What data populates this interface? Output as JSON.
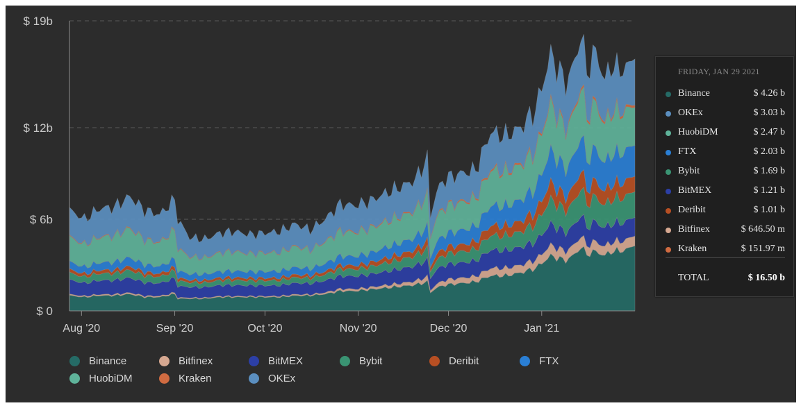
{
  "chart_data": {
    "type": "area",
    "stacked": true,
    "y_unit": "USD billions",
    "ylim": [
      0,
      19
    ],
    "y_ticks": [
      {
        "value": 0,
        "label": "$ 0"
      },
      {
        "value": 6,
        "label": "$ 6b"
      },
      {
        "value": 12,
        "label": "$ 12b"
      },
      {
        "value": 19,
        "label": "$ 19b"
      }
    ],
    "x_ticks": [
      {
        "day": 4,
        "label": "Aug '20"
      },
      {
        "day": 35,
        "label": "Sep '20"
      },
      {
        "day": 65,
        "label": "Oct '20"
      },
      {
        "day": 96,
        "label": "Nov '20"
      },
      {
        "day": 126,
        "label": "Dec '20"
      },
      {
        "day": 157,
        "label": "Jan '21"
      }
    ],
    "x_domain": [
      0,
      188
    ],
    "anchor_days": [
      0,
      5,
      10,
      15,
      20,
      25,
      30,
      35,
      36,
      40,
      45,
      50,
      55,
      60,
      65,
      70,
      75,
      80,
      85,
      90,
      95,
      100,
      105,
      110,
      115,
      119,
      120,
      122,
      125,
      130,
      135,
      140,
      145,
      150,
      155,
      160,
      165,
      168,
      170,
      172,
      175,
      178,
      180,
      182,
      185,
      188
    ],
    "anchor_totals": [
      6.6,
      6.0,
      6.7,
      6.8,
      7.5,
      6.6,
      6.3,
      7.3,
      6.0,
      4.8,
      4.7,
      5.1,
      5.2,
      5.0,
      5.1,
      5.2,
      5.7,
      5.3,
      6.0,
      7.0,
      6.9,
      7.2,
      7.7,
      8.1,
      8.6,
      10.0,
      6.2,
      7.8,
      8.7,
      9.0,
      9.2,
      11.7,
      11.5,
      12.0,
      13.2,
      16.8,
      14.9,
      16.3,
      18.2,
      15.7,
      17.1,
      15.0,
      16.2,
      15.8,
      15.9,
      16.5
    ],
    "series": [
      {
        "name": "Binance",
        "color": "#256b66",
        "anchor_values": [
          1.0,
          0.9,
          1.0,
          1.0,
          1.1,
          0.9,
          0.9,
          1.1,
          0.8,
          0.8,
          0.8,
          0.9,
          0.9,
          0.9,
          0.9,
          0.9,
          1.0,
          1.0,
          1.1,
          1.3,
          1.3,
          1.4,
          1.5,
          1.6,
          1.7,
          1.9,
          1.2,
          1.5,
          1.7,
          1.8,
          1.9,
          2.3,
          2.3,
          2.5,
          2.8,
          3.6,
          3.3,
          3.7,
          4.2,
          3.7,
          3.9,
          3.6,
          3.9,
          3.9,
          4.0,
          4.26
        ]
      },
      {
        "name": "Bitfinex",
        "color": "#d6a891",
        "anchor_values": [
          0.08,
          0.07,
          0.08,
          0.08,
          0.09,
          0.08,
          0.07,
          0.09,
          0.07,
          0.06,
          0.06,
          0.06,
          0.06,
          0.06,
          0.06,
          0.07,
          0.08,
          0.07,
          0.1,
          0.14,
          0.13,
          0.14,
          0.18,
          0.2,
          0.25,
          0.35,
          0.15,
          0.25,
          0.33,
          0.35,
          0.36,
          0.5,
          0.5,
          0.5,
          0.55,
          0.7,
          0.6,
          0.65,
          0.75,
          0.6,
          0.65,
          0.6,
          0.62,
          0.62,
          0.64,
          0.6465
        ]
      },
      {
        "name": "BitMEX",
        "color": "#2c3fa6",
        "anchor_values": [
          0.95,
          0.85,
          0.92,
          0.92,
          0.98,
          0.88,
          0.84,
          0.95,
          0.75,
          0.7,
          0.68,
          0.72,
          0.72,
          0.7,
          0.7,
          0.7,
          0.75,
          0.72,
          0.78,
          0.85,
          0.84,
          0.86,
          0.9,
          0.95,
          1.0,
          1.1,
          0.8,
          0.95,
          1.0,
          1.0,
          1.02,
          1.2,
          1.15,
          1.18,
          1.2,
          1.4,
          1.25,
          1.3,
          1.4,
          1.2,
          1.3,
          1.2,
          1.22,
          1.2,
          1.2,
          1.21
        ]
      },
      {
        "name": "Bybit",
        "color": "#3a9473",
        "anchor_values": [
          0.45,
          0.4,
          0.45,
          0.45,
          0.5,
          0.45,
          0.42,
          0.48,
          0.35,
          0.3,
          0.3,
          0.32,
          0.33,
          0.32,
          0.32,
          0.33,
          0.36,
          0.34,
          0.4,
          0.45,
          0.45,
          0.48,
          0.55,
          0.6,
          0.65,
          0.75,
          0.45,
          0.6,
          0.68,
          0.72,
          0.75,
          0.95,
          0.95,
          1.0,
          1.15,
          1.6,
          1.4,
          1.55,
          1.8,
          1.5,
          1.65,
          1.45,
          1.6,
          1.6,
          1.65,
          1.69
        ]
      },
      {
        "name": "Deribit",
        "color": "#b74f23",
        "anchor_values": [
          0.22,
          0.2,
          0.22,
          0.22,
          0.25,
          0.22,
          0.2,
          0.24,
          0.2,
          0.16,
          0.16,
          0.17,
          0.17,
          0.17,
          0.17,
          0.17,
          0.19,
          0.18,
          0.2,
          0.25,
          0.25,
          0.27,
          0.32,
          0.35,
          0.4,
          0.5,
          0.3,
          0.4,
          0.45,
          0.45,
          0.5,
          0.65,
          0.65,
          0.7,
          0.8,
          1.1,
          0.9,
          1.0,
          1.2,
          0.95,
          1.05,
          0.9,
          1.0,
          0.98,
          1.0,
          1.01
        ]
      },
      {
        "name": "FTX",
        "color": "#2a7fd5",
        "anchor_values": [
          0.5,
          0.45,
          0.5,
          0.52,
          0.58,
          0.5,
          0.48,
          0.55,
          0.45,
          0.4,
          0.4,
          0.42,
          0.43,
          0.42,
          0.43,
          0.44,
          0.48,
          0.45,
          0.52,
          0.6,
          0.6,
          0.63,
          0.7,
          0.75,
          0.8,
          0.95,
          0.6,
          0.8,
          0.9,
          0.95,
          1.0,
          1.3,
          1.3,
          1.4,
          1.55,
          2.1,
          1.85,
          2.0,
          2.3,
          1.95,
          2.1,
          1.85,
          2.0,
          1.95,
          2.0,
          2.03
        ]
      },
      {
        "name": "HuobiDM",
        "color": "#5fb39a",
        "anchor_values": [
          1.6,
          1.45,
          1.65,
          1.7,
          1.9,
          1.6,
          1.55,
          1.85,
          1.45,
          1.1,
          1.05,
          1.2,
          1.25,
          1.15,
          1.2,
          1.2,
          1.35,
          1.2,
          1.4,
          1.6,
          1.55,
          1.6,
          1.65,
          1.7,
          1.75,
          2.0,
          1.3,
          1.6,
          1.75,
          1.8,
          1.8,
          2.3,
          2.2,
          2.25,
          2.4,
          3.0,
          2.55,
          2.85,
          3.2,
          2.7,
          2.95,
          2.5,
          2.75,
          2.65,
          2.6,
          2.47
        ]
      },
      {
        "name": "Kraken",
        "color": "#d06b41",
        "anchor_values": [
          0.05,
          0.05,
          0.05,
          0.05,
          0.06,
          0.05,
          0.05,
          0.06,
          0.05,
          0.04,
          0.04,
          0.04,
          0.04,
          0.04,
          0.04,
          0.04,
          0.05,
          0.04,
          0.05,
          0.06,
          0.06,
          0.06,
          0.07,
          0.07,
          0.08,
          0.1,
          0.06,
          0.08,
          0.09,
          0.09,
          0.1,
          0.12,
          0.12,
          0.12,
          0.13,
          0.16,
          0.14,
          0.15,
          0.17,
          0.15,
          0.16,
          0.14,
          0.15,
          0.15,
          0.15,
          0.15197
        ]
      },
      {
        "name": "OKEx",
        "color": "#5b8fc0",
        "anchor_values": [
          1.75,
          1.63,
          1.83,
          1.86,
          2.04,
          1.92,
          1.79,
          1.98,
          1.88,
          1.24,
          1.2,
          1.27,
          1.3,
          1.24,
          1.28,
          1.35,
          1.44,
          1.3,
          1.45,
          1.75,
          1.72,
          1.76,
          1.83,
          1.88,
          1.97,
          2.35,
          1.34,
          1.62,
          1.78,
          1.84,
          1.78,
          2.38,
          2.28,
          2.35,
          2.62,
          3.14,
          2.91,
          3.1,
          3.18,
          2.95,
          3.29,
          2.76,
          2.96,
          2.75,
          2.66,
          3.03
        ]
      }
    ]
  },
  "tooltip": {
    "date": "FRIDAY, JAN 29 2021",
    "rows": [
      {
        "name": "Binance",
        "value": "$ 4.26 b",
        "color": "#256b66"
      },
      {
        "name": "OKEx",
        "value": "$ 3.03 b",
        "color": "#5b8fc0"
      },
      {
        "name": "HuobiDM",
        "value": "$ 2.47 b",
        "color": "#5fb39a"
      },
      {
        "name": "FTX",
        "value": "$ 2.03 b",
        "color": "#2a7fd5"
      },
      {
        "name": "Bybit",
        "value": "$ 1.69 b",
        "color": "#3a9473"
      },
      {
        "name": "BitMEX",
        "value": "$ 1.21 b",
        "color": "#2c3fa6"
      },
      {
        "name": "Deribit",
        "value": "$ 1.01 b",
        "color": "#b74f23"
      },
      {
        "name": "Bitfinex",
        "value": "$ 646.50 m",
        "color": "#d6a891"
      },
      {
        "name": "Kraken",
        "value": "$ 151.97 m",
        "color": "#d06b41"
      }
    ],
    "total_label": "TOTAL",
    "total_value": "$ 16.50 b"
  },
  "legend": [
    {
      "name": "Binance",
      "color": "#256b66"
    },
    {
      "name": "Bitfinex",
      "color": "#d6a891"
    },
    {
      "name": "BitMEX",
      "color": "#2c3fa6"
    },
    {
      "name": "Bybit",
      "color": "#3a9473"
    },
    {
      "name": "Deribit",
      "color": "#b74f23"
    },
    {
      "name": "FTX",
      "color": "#2a7fd5"
    },
    {
      "name": "HuobiDM",
      "color": "#5fb39a"
    },
    {
      "name": "Kraken",
      "color": "#d06b41"
    },
    {
      "name": "OKEx",
      "color": "#5b8fc0"
    }
  ]
}
